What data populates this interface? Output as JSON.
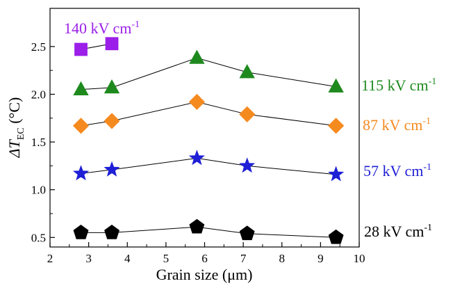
{
  "chart_data": {
    "type": "line",
    "xlabel": "Grain size (μm)",
    "ylabel": "ΔT_EC (°C)",
    "ylabel_main": "ΔT",
    "ylabel_sub": "EC",
    "ylabel_unit": " (°C)",
    "xlim": [
      2,
      10
    ],
    "ylim": [
      0.4,
      2.9
    ],
    "x_ticks": [
      2,
      3,
      4,
      5,
      6,
      7,
      8,
      9,
      10
    ],
    "y_ticks": [
      0.5,
      1.0,
      1.5,
      2.0,
      2.5
    ],
    "x_tick_labels": [
      "2",
      "3",
      "4",
      "5",
      "6",
      "7",
      "8",
      "9",
      "10"
    ],
    "y_tick_labels": [
      "0.5",
      "1.0",
      "1.5",
      "2.0",
      "2.5"
    ],
    "series": [
      {
        "name": "140 kV cm-1",
        "label_main": "140 kV cm",
        "label_sup": "-1",
        "marker": "square",
        "color": "#9b1fe8",
        "x": [
          2.8,
          3.6
        ],
        "y": [
          2.47,
          2.53
        ]
      },
      {
        "name": "115 kV cm-1",
        "label_main": "115 kV cm",
        "label_sup": "-1",
        "marker": "triangle",
        "color": "#1e8a1e",
        "x": [
          2.8,
          3.6,
          5.8,
          7.1,
          9.4
        ],
        "y": [
          2.05,
          2.07,
          2.38,
          2.23,
          2.08
        ]
      },
      {
        "name": "87 kV cm-1",
        "label_main": "87 kV cm",
        "label_sup": "-1",
        "marker": "diamond",
        "color": "#f58a1f",
        "x": [
          2.8,
          3.6,
          5.8,
          7.1,
          9.4
        ],
        "y": [
          1.67,
          1.72,
          1.92,
          1.79,
          1.67
        ]
      },
      {
        "name": "57 kV cm-1",
        "label_main": "57 kV cm",
        "label_sup": "-1",
        "marker": "star",
        "color": "#1f1fd6",
        "x": [
          2.8,
          3.6,
          5.8,
          7.1,
          9.4
        ],
        "y": [
          1.17,
          1.21,
          1.33,
          1.25,
          1.16
        ]
      },
      {
        "name": "28 kV cm-1",
        "label_main": "28 kV cm",
        "label_sup": "-1",
        "marker": "pentagon",
        "color": "#000000",
        "x": [
          2.8,
          3.6,
          5.8,
          7.1,
          9.4
        ],
        "y": [
          0.55,
          0.55,
          0.61,
          0.54,
          0.5
        ]
      }
    ]
  }
}
